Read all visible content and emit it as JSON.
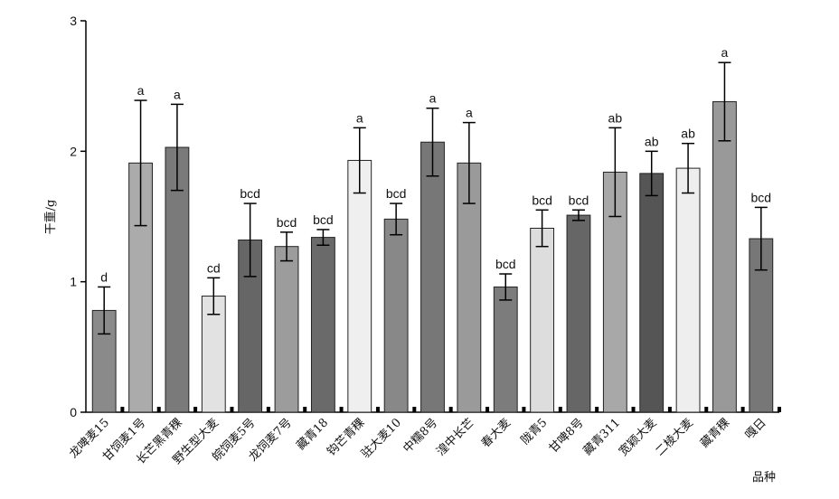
{
  "chart_data": {
    "type": "bar",
    "y_label": "干重/g",
    "x_label": "品种",
    "categories": [
      "龙啤麦15",
      "甘饲麦1号",
      "长芒黑青稞",
      "野生型大麦",
      "皖饲麦5号",
      "龙饲麦7号",
      "藏青18",
      "钩芒青稞",
      "驻大麦10",
      "中糯8号",
      "湟中长芒",
      "春大麦",
      "陇青5",
      "甘啤8号",
      "藏青311",
      "宽颖大麦",
      "二棱大麦",
      "藏青稞",
      "嘎日"
    ],
    "values": [
      0.78,
      1.91,
      2.03,
      0.89,
      1.32,
      1.27,
      1.34,
      1.93,
      1.48,
      2.07,
      1.91,
      0.96,
      1.41,
      1.51,
      1.84,
      1.83,
      1.87,
      2.38,
      1.33
    ],
    "errors": [
      0.18,
      0.48,
      0.33,
      0.14,
      0.28,
      0.11,
      0.06,
      0.25,
      0.12,
      0.26,
      0.31,
      0.1,
      0.14,
      0.04,
      0.34,
      0.17,
      0.19,
      0.3,
      0.24
    ],
    "annotations": [
      "d",
      "a",
      "a",
      "cd",
      "bcd",
      "bcd",
      "bcd",
      "a",
      "bcd",
      "a",
      "a",
      "bcd",
      "bcd",
      "bcd",
      "ab",
      "ab",
      "ab",
      "a",
      "bcd"
    ],
    "colors": [
      "#8a8a8a",
      "#ababab",
      "#7a7a7a",
      "#e2e2e2",
      "#666666",
      "#9c9c9c",
      "#6a6a6a",
      "#efefef",
      "#888888",
      "#777777",
      "#9a9a9a",
      "#7c7c7c",
      "#dddddd",
      "#666666",
      "#a8a8a8",
      "#555555",
      "#eeeeee",
      "#999999",
      "#777777"
    ],
    "ylim": [
      0,
      3
    ],
    "yticks": [
      0,
      1,
      2,
      3
    ]
  }
}
